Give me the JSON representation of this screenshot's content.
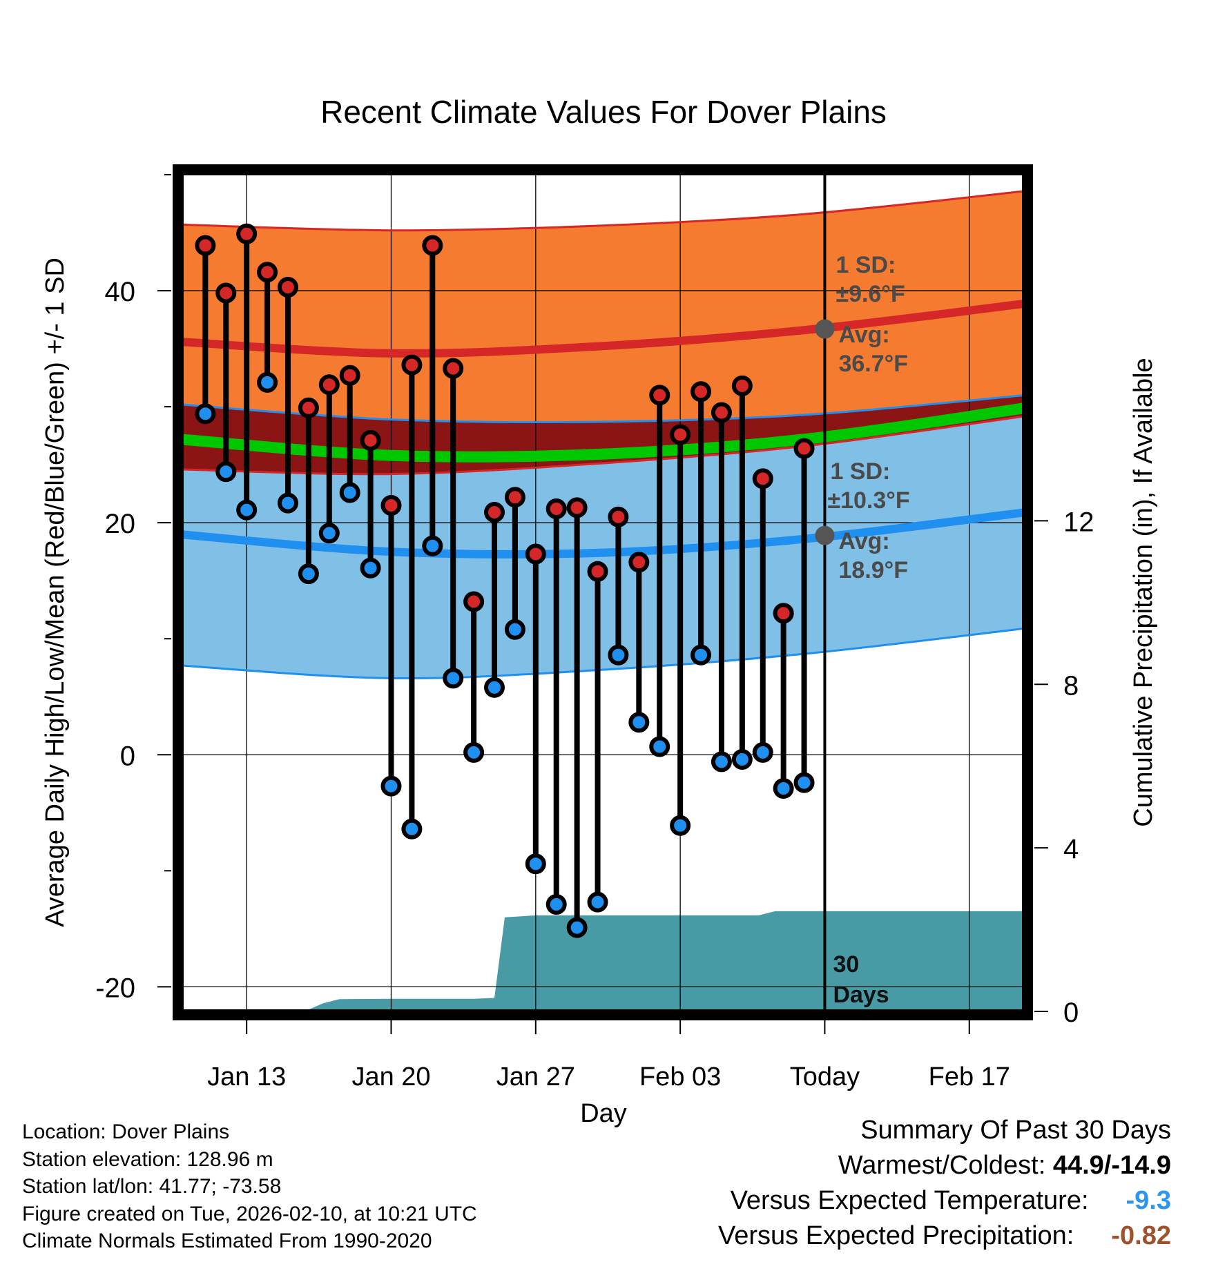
{
  "chart_data": {
    "type": "line",
    "title": "Recent Climate Values For Dover Plains",
    "xlabel": "Day",
    "ylabel": "Average Daily High/Low/Mean (Red/Blue/Green) +/- 1 SD",
    "ylabel_right": "Cumulative Precipitation (in), If Available",
    "x_ticks": [
      {
        "day": 3,
        "label": "Jan 13"
      },
      {
        "day": 10,
        "label": "Jan 20"
      },
      {
        "day": 17,
        "label": "Jan 27"
      },
      {
        "day": 24,
        "label": "Feb 03"
      },
      {
        "day": 31,
        "label": "Today"
      },
      {
        "day": 38,
        "label": "Feb 17"
      }
    ],
    "xlim": [
      -0.25,
      40.75
    ],
    "ylim": [
      -22.3,
      50.3
    ],
    "y_ticks_left": [
      -20,
      0,
      20,
      40
    ],
    "y_ticks_left_labels": [
      "-20",
      "0",
      "20",
      "40"
    ],
    "y2lim": [
      -0.05,
      20.55
    ],
    "y_ticks_right": [
      0,
      4,
      8,
      12
    ],
    "y_ticks_right_labels": [
      "0",
      "4",
      "8",
      "12"
    ],
    "today_day": 31,
    "days": [
      1,
      2,
      3,
      4,
      5,
      6,
      7,
      8,
      9,
      10,
      11,
      12,
      13,
      14,
      15,
      16,
      17,
      18,
      19,
      20,
      21,
      22,
      23,
      24,
      25,
      26,
      27,
      28,
      29,
      30
    ],
    "highs": [
      43.9,
      39.8,
      44.9,
      41.6,
      40.3,
      29.9,
      31.9,
      32.7,
      27.1,
      21.5,
      33.6,
      43.9,
      33.3,
      13.2,
      20.9,
      22.2,
      17.3,
      21.2,
      21.3,
      15.8,
      20.5,
      16.6,
      31.0,
      27.6,
      31.3,
      29.5,
      31.8,
      23.8,
      12.2,
      26.4
    ],
    "lows": [
      29.4,
      24.4,
      21.1,
      32.1,
      21.7,
      15.6,
      19.1,
      22.6,
      16.1,
      -2.7,
      -6.4,
      18.0,
      6.6,
      0.2,
      5.8,
      10.8,
      -9.4,
      -12.9,
      -14.9,
      -12.7,
      8.6,
      2.8,
      0.7,
      -6.1,
      8.6,
      -0.6,
      -0.4,
      0.2,
      -2.9,
      -2.4
    ],
    "normal_high_days": [
      -0.25,
      10,
      20,
      30,
      40.75
    ],
    "normal_high_mean": [
      35.6,
      34.6,
      35.2,
      36.6,
      38.9
    ],
    "normal_high_upper": [
      45.7,
      45.2,
      45.6,
      46.6,
      48.6
    ],
    "normal_high_lower": [
      30.2,
      28.9,
      28.7,
      29.3,
      31.0
    ],
    "normal_mean_line": [
      27.2,
      25.8,
      25.9,
      27.2,
      29.9
    ],
    "normal_low_days": [
      -0.25,
      10,
      20,
      30,
      40.75
    ],
    "normal_low_upper": [
      24.6,
      24.2,
      25.1,
      26.6,
      29.2
    ],
    "normal_low_mean": [
      19.0,
      17.5,
      17.4,
      18.6,
      20.9
    ],
    "normal_low_lower": [
      7.7,
      6.6,
      7.3,
      8.7,
      10.9
    ],
    "precip_days": [
      5.8,
      6.7,
      7.5,
      10,
      14,
      15,
      15.5,
      17,
      20,
      26,
      27.8,
      28.6,
      31,
      40.75
    ],
    "precip_values": [
      0,
      0.2,
      0.3,
      0.31,
      0.31,
      0.33,
      2.3,
      2.35,
      2.35,
      2.35,
      2.35,
      2.45,
      2.45,
      2.45
    ],
    "annotations": {
      "high_sd_title": "1 SD:",
      "high_sd": "±9.6°F",
      "high_avg_title": "Avg:",
      "high_avg": "36.7°F",
      "low_sd_title": "1 SD:",
      "low_sd": "±10.3°F",
      "low_avg_title": "Avg:",
      "low_avg": "18.9°F",
      "today_high_avg_value": 36.7,
      "today_low_avg_value": 18.9,
      "period_number": "30",
      "period_unit": "Days"
    }
  },
  "colors": {
    "high_band": "#f47b30",
    "high_line": "#d62728",
    "high_lower_band": "#8b1414",
    "mean_line": "#00c800",
    "low_band": "#80bfe6",
    "low_line": "#1f8ff0",
    "precip": "#489ba4",
    "high_marker": "#d62728",
    "low_marker": "#1f8ff0",
    "annotation_text": "#4a4a4a",
    "vs_temp": "#2b95ef",
    "vs_precip": "#a0522d"
  },
  "info": {
    "location": "Location: Dover Plains",
    "elevation": "Station elevation: 128.96 m",
    "latlon": "Station lat/lon: 41.77; -73.58",
    "created": "Figure created on Tue, 2026-02-10, at 10:21 UTC",
    "normals": "Climate Normals Estimated From 1990-2020"
  },
  "summary": {
    "title": "Summary Of Past 30 Days",
    "warm_cold_label": "Warmest/Coldest:",
    "warm_cold_value": "44.9/-14.9",
    "vs_temp_label": "Versus Expected Temperature:",
    "vs_temp_value": "-9.3",
    "vs_precip_label": "Versus Expected Precipitation:",
    "vs_precip_value": "-0.82"
  }
}
